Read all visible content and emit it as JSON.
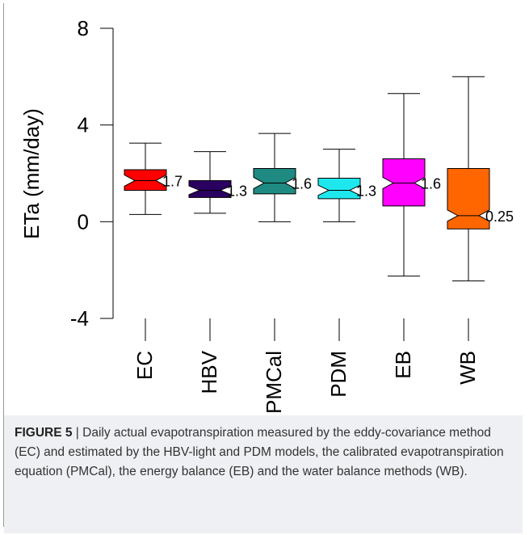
{
  "chart_data": {
    "type": "boxplot",
    "ylabel": "ETa (mm/day)",
    "ylim": [
      -4,
      8
    ],
    "yticks": [
      -4,
      0,
      4,
      8
    ],
    "ytick_labels": [
      "-4",
      "0",
      "4",
      "8"
    ],
    "grid": false,
    "series": [
      {
        "name": "EC",
        "color": "#ff0000",
        "whisker_low": 0.3,
        "q1": 1.3,
        "median": 1.7,
        "q3": 2.15,
        "whisker_high": 3.25,
        "label": "1.7"
      },
      {
        "name": "HBV",
        "color": "#2a0060",
        "whisker_low": 0.35,
        "q1": 1.0,
        "median": 1.3,
        "q3": 1.7,
        "whisker_high": 2.9,
        "label": "1.3"
      },
      {
        "name": "PMCal",
        "color": "#1e8a82",
        "whisker_low": 0.0,
        "q1": 1.15,
        "median": 1.6,
        "q3": 2.2,
        "whisker_high": 3.65,
        "label": "1.6"
      },
      {
        "name": "PDM",
        "color": "#1ee8ee",
        "whisker_low": 0.0,
        "q1": 0.95,
        "median": 1.3,
        "q3": 1.8,
        "whisker_high": 3.0,
        "label": "1.3"
      },
      {
        "name": "EB",
        "color": "#ff00ff",
        "whisker_low": -2.25,
        "q1": 0.65,
        "median": 1.6,
        "q3": 2.6,
        "whisker_high": 5.3,
        "label": "1.6"
      },
      {
        "name": "WB",
        "color": "#ff6600",
        "whisker_low": -2.45,
        "q1": -0.3,
        "median": 0.25,
        "q3": 2.2,
        "whisker_high": 6.0,
        "label": "0.25"
      }
    ]
  },
  "caption": {
    "label": "FIGURE 5",
    "separator": " | ",
    "text": "Daily actual evapotranspiration measured by the eddy-covariance method (EC) and estimated by the HBV-light and PDM models, the calibrated evapotranspiration equation (PMCal), the energy balance (EB) and the water balance methods (WB)."
  }
}
